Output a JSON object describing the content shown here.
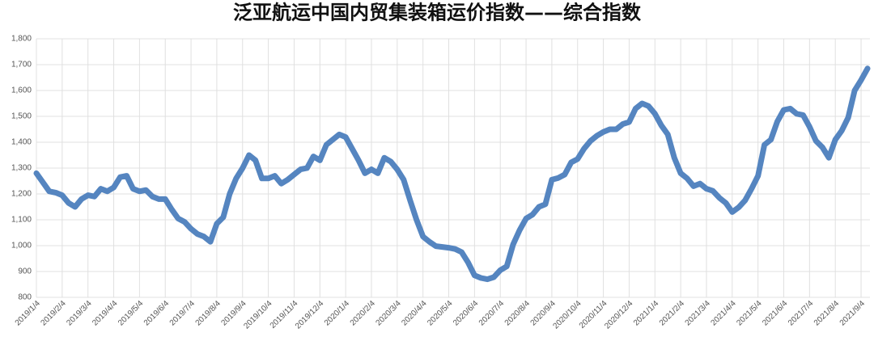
{
  "chart_data": {
    "type": "line",
    "title": "泛亚航运中国内贸集装箱运价指数——综合指数",
    "categories": [
      "2019/1/4",
      null,
      null,
      null,
      "2019/2/4",
      null,
      null,
      null,
      "2019/3/4",
      null,
      null,
      null,
      "2019/4/4",
      null,
      null,
      null,
      "2019/5/4",
      null,
      null,
      null,
      "2019/6/4",
      null,
      null,
      null,
      "2019/7/4",
      null,
      null,
      null,
      "2019/8/4",
      null,
      null,
      null,
      "2019/9/4",
      null,
      null,
      null,
      "2019/10/4",
      null,
      null,
      null,
      "2019/11/4",
      null,
      null,
      null,
      "2019/12/4",
      null,
      null,
      null,
      "2020/1/4",
      null,
      null,
      null,
      "2020/2/4",
      null,
      null,
      null,
      "2020/3/4",
      null,
      null,
      null,
      "2020/4/4",
      null,
      null,
      null,
      "2020/5/4",
      null,
      null,
      null,
      "2020/6/4",
      null,
      null,
      null,
      "2020/7/4",
      null,
      null,
      null,
      "2020/8/4",
      null,
      null,
      null,
      "2020/9/4",
      null,
      null,
      null,
      "2020/10/4",
      null,
      null,
      null,
      "2020/11/4",
      null,
      null,
      null,
      "2020/12/4",
      null,
      null,
      null,
      "2021/1/4",
      null,
      null,
      null,
      "2021/2/4",
      null,
      null,
      null,
      "2021/3/4",
      null,
      null,
      null,
      "2021/4/4",
      null,
      null,
      null,
      "2021/5/4",
      null,
      null,
      null,
      "2021/6/4",
      null,
      null,
      null,
      "2021/7/4",
      null,
      null,
      null,
      "2021/8/4",
      null,
      null,
      null,
      "2021/9/4",
      null
    ],
    "series": [
      {
        "name": "综合指数",
        "color": "#5585c0",
        "values": [
          1280,
          1245,
          1210,
          1205,
          1195,
          1165,
          1150,
          1180,
          1195,
          1190,
          1220,
          1210,
          1225,
          1265,
          1270,
          1220,
          1210,
          1215,
          1190,
          1180,
          1180,
          1140,
          1105,
          1092,
          1065,
          1045,
          1035,
          1015,
          1085,
          1110,
          1200,
          1260,
          1300,
          1350,
          1330,
          1260,
          1260,
          1270,
          1240,
          1255,
          1275,
          1295,
          1300,
          1345,
          1330,
          1390,
          1410,
          1430,
          1420,
          1375,
          1330,
          1280,
          1295,
          1280,
          1340,
          1325,
          1295,
          1255,
          1175,
          1100,
          1035,
          1015,
          998,
          995,
          992,
          987,
          975,
          935,
          885,
          875,
          870,
          878,
          905,
          920,
          1005,
          1060,
          1105,
          1120,
          1150,
          1160,
          1255,
          1262,
          1275,
          1322,
          1335,
          1375,
          1405,
          1425,
          1440,
          1450,
          1450,
          1470,
          1478,
          1530,
          1550,
          1540,
          1510,
          1465,
          1430,
          1340,
          1280,
          1260,
          1230,
          1240,
          1220,
          1212,
          1185,
          1165,
          1130,
          1148,
          1175,
          1220,
          1270,
          1390,
          1410,
          1480,
          1525,
          1530,
          1510,
          1505,
          1460,
          1405,
          1380,
          1340,
          1410,
          1445,
          1495,
          1600,
          1640,
          1685
        ]
      }
    ],
    "ylim": [
      800,
      1800
    ],
    "yticks": [
      800,
      900,
      {
        "value": 1000,
        "label": "1,000"
      },
      {
        "value": 1100,
        "label": "1,100"
      },
      {
        "value": 1200,
        "label": "1,200"
      },
      {
        "value": 1300,
        "label": "1,300"
      },
      {
        "value": 1400,
        "label": "1,400"
      },
      {
        "value": 1500,
        "label": "1,500"
      },
      {
        "value": 1600,
        "label": "1,600"
      },
      {
        "value": 1700,
        "label": "1,700"
      },
      {
        "value": 1800,
        "label": "1,800"
      }
    ],
    "grid": true
  }
}
